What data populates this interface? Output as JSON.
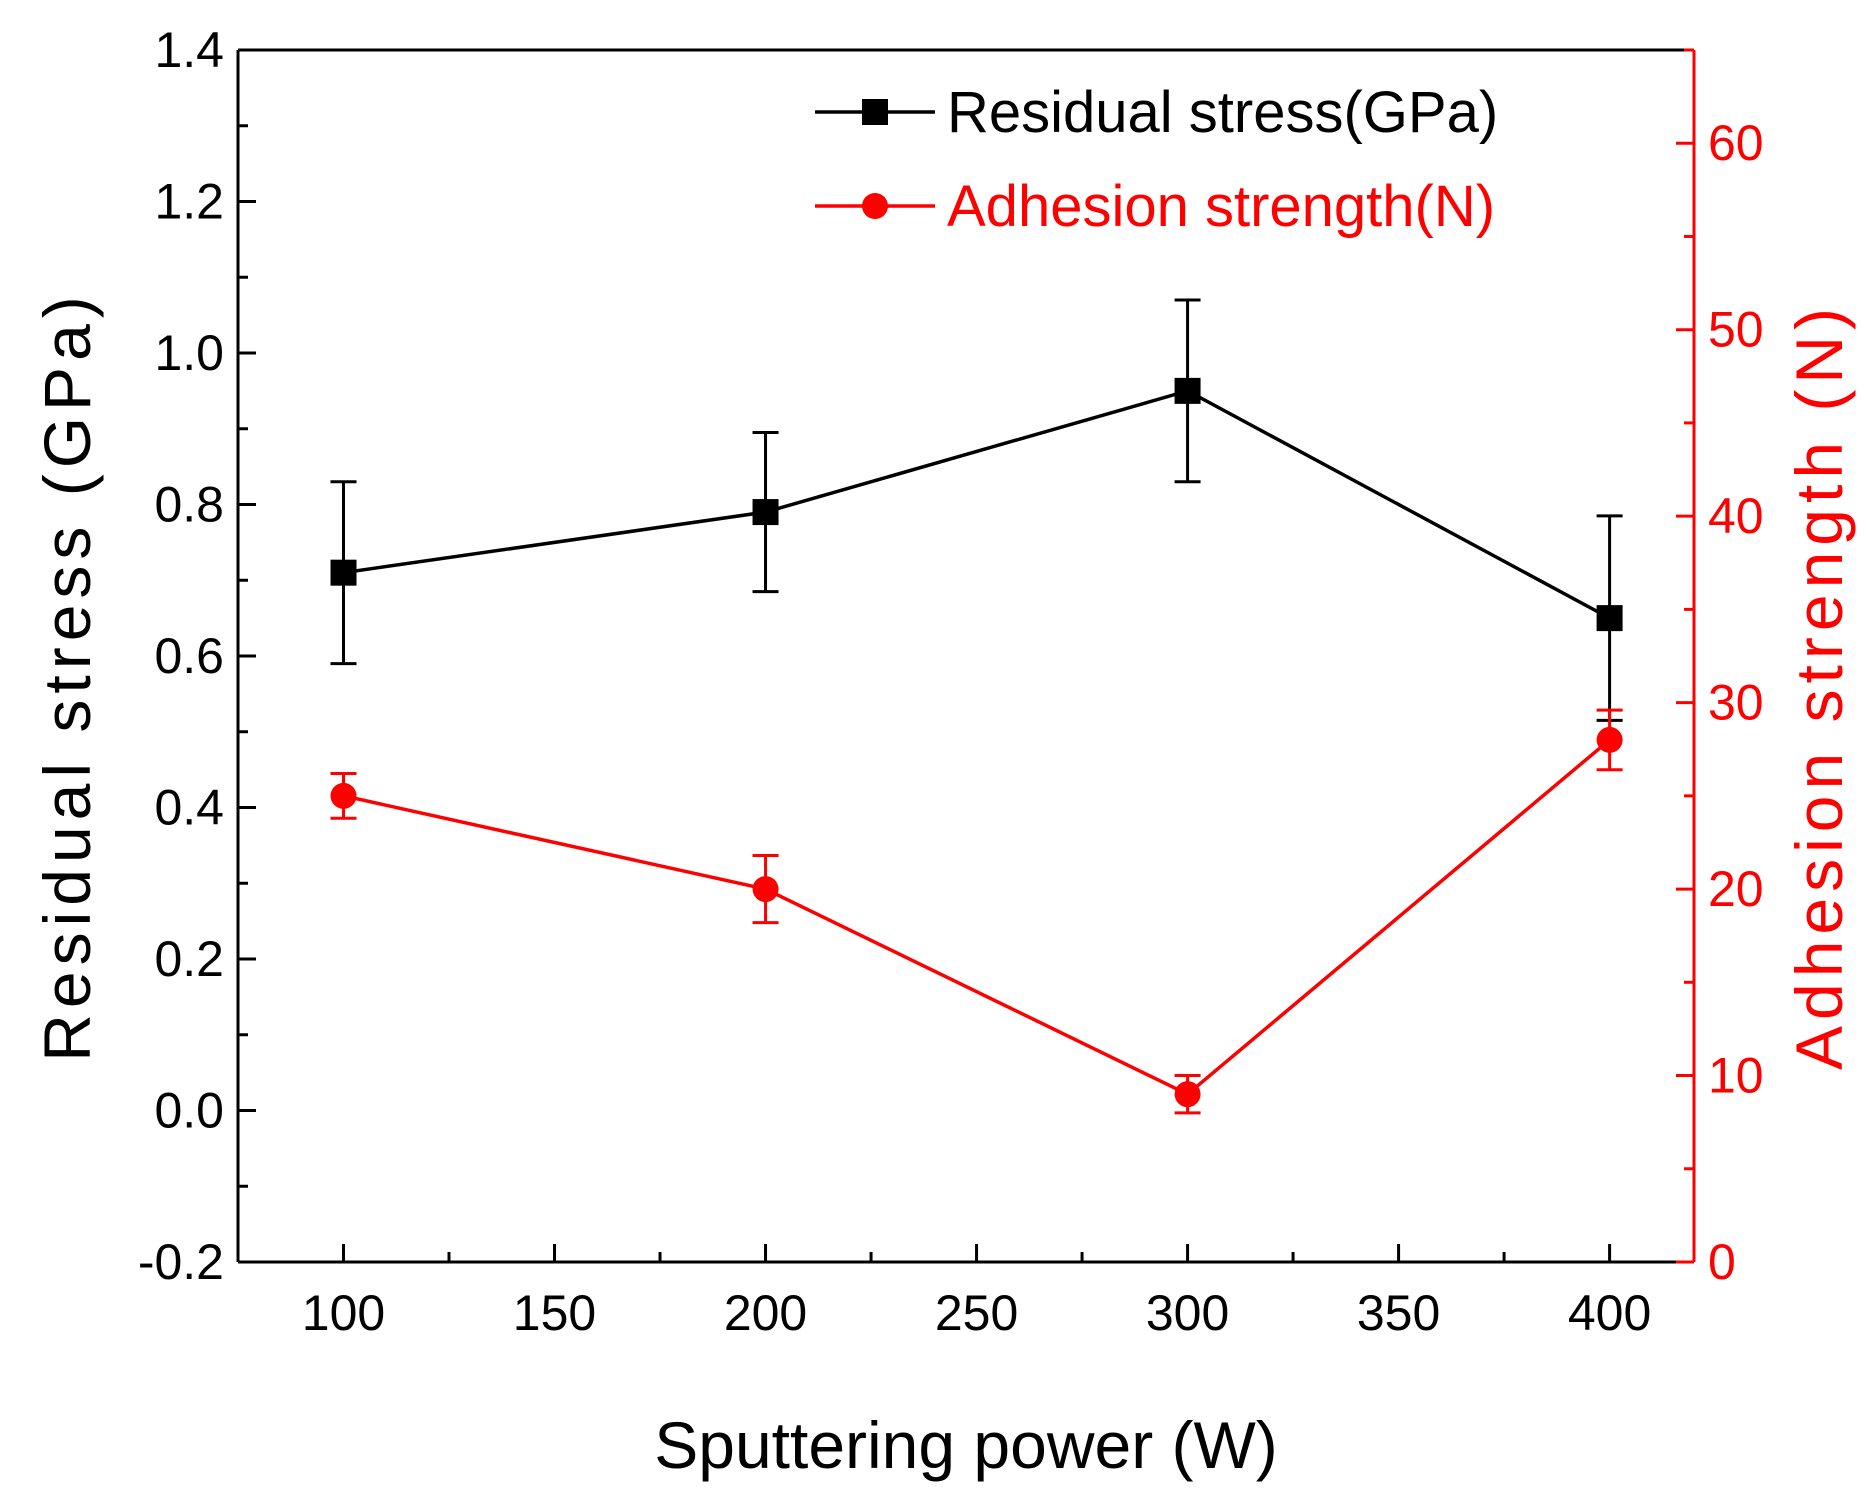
{
  "chart_data": {
    "type": "line",
    "x": [
      100,
      200,
      300,
      400
    ],
    "xlabel": "Sputtering power (W)",
    "xlim": [
      75,
      420
    ],
    "xticks": [
      100,
      150,
      200,
      250,
      300,
      350,
      400
    ],
    "xtick_labels": [
      "100",
      "150",
      "200",
      "250",
      "300",
      "350",
      "400"
    ],
    "ylabel_left": "Residual stress (GPa)",
    "ylim_left": [
      -0.2,
      1.4
    ],
    "yticks_left": [
      -0.2,
      0.0,
      0.2,
      0.4,
      0.6,
      0.8,
      1.0,
      1.2,
      1.4
    ],
    "ytick_labels_left": [
      "-0.2",
      "0.0",
      "0.2",
      "0.4",
      "0.6",
      "0.8",
      "1.0",
      "1.2",
      "1.4"
    ],
    "ylabel_right": "Adhesion strength (N)",
    "ylim_right": [
      0,
      65
    ],
    "yticks_right": [
      0,
      10,
      20,
      30,
      40,
      50,
      60
    ],
    "ytick_labels_right": [
      "0",
      "10",
      "20",
      "30",
      "40",
      "50",
      "60"
    ],
    "legend_position": "top-center",
    "series": [
      {
        "name": "Residual stress(GPa)",
        "axis": "left",
        "marker": "square",
        "color": "#000000",
        "values": [
          0.71,
          0.79,
          0.95,
          0.65
        ],
        "errors": [
          0.12,
          0.105,
          0.12,
          0.135
        ]
      },
      {
        "name": "Adhesion strength(N)",
        "axis": "right",
        "marker": "circle",
        "color": "#ff0000",
        "values": [
          25.0,
          20.0,
          9.0,
          28.0
        ],
        "errors": [
          1.2,
          1.8,
          1.0,
          1.6
        ]
      }
    ]
  }
}
